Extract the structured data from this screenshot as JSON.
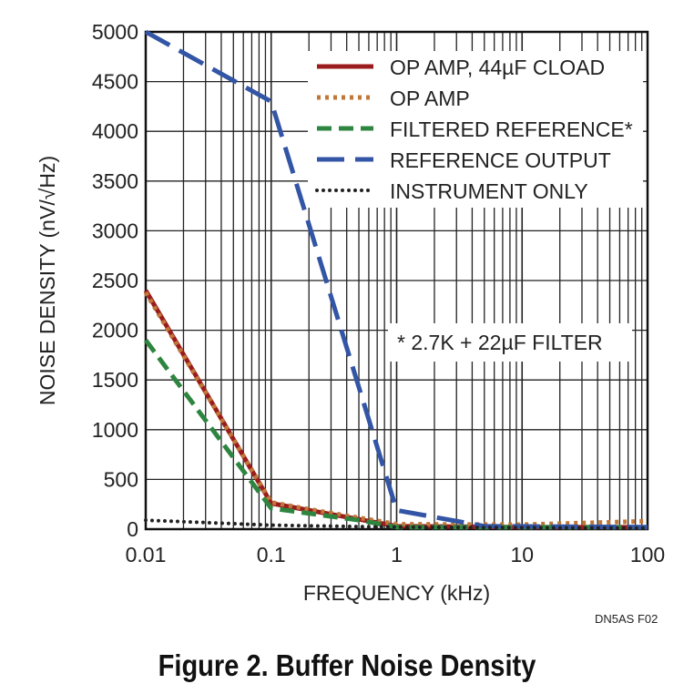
{
  "chart_data": {
    "type": "line",
    "title": "Figure 2. Buffer Noise Density",
    "xlabel": "FREQUENCY (kHz)",
    "ylabel": "NOISE DENSITY (nV/√Hz)",
    "xscale": "log",
    "xlim": [
      0.01,
      100
    ],
    "ylim": [
      0,
      5000
    ],
    "xticks": [
      0.01,
      0.1,
      1,
      10,
      100
    ],
    "xtick_labels": [
      "0.01",
      "0.1",
      "1",
      "10",
      "100"
    ],
    "yticks": [
      0,
      500,
      1000,
      1500,
      2000,
      2500,
      3000,
      3500,
      4000,
      4500,
      5000
    ],
    "ytick_labels": [
      "0",
      "500",
      "1000",
      "1500",
      "2000",
      "2500",
      "3000",
      "3500",
      "4000",
      "4500",
      "5000"
    ],
    "grid": true,
    "legend_position": "top-right",
    "annotation": "* 2.7K + 22µF FILTER",
    "figure_code": "DN5AS F02",
    "series": [
      {
        "name": "OP AMP, 44µF CLOAD",
        "color": "#9b1c1c",
        "style": "solid",
        "x": [
          0.01,
          0.1,
          0.2,
          1,
          10,
          100
        ],
        "y": [
          2400,
          260,
          190,
          30,
          20,
          20
        ]
      },
      {
        "name": "OP AMP",
        "color": "#c0783a",
        "style": "dotted",
        "x": [
          0.01,
          0.1,
          0.2,
          1,
          10,
          100
        ],
        "y": [
          2380,
          270,
          200,
          50,
          45,
          80
        ]
      },
      {
        "name": "FILTERED REFERENCE*",
        "color": "#2e8540",
        "style": "dashed",
        "x": [
          0.01,
          0.1,
          0.5,
          1,
          10,
          100
        ],
        "y": [
          1900,
          210,
          90,
          20,
          20,
          20
        ]
      },
      {
        "name": "REFERENCE OUTPUT",
        "color": "#3355a5",
        "style": "longdash",
        "x": [
          0.01,
          0.1,
          1,
          5,
          100
        ],
        "y": [
          5000,
          4300,
          190,
          30,
          20
        ]
      },
      {
        "name": "INSTRUMENT ONLY",
        "color": "#222222",
        "style": "dots",
        "x": [
          0.01,
          0.1,
          1,
          100
        ],
        "y": [
          90,
          40,
          20,
          10
        ]
      }
    ]
  }
}
